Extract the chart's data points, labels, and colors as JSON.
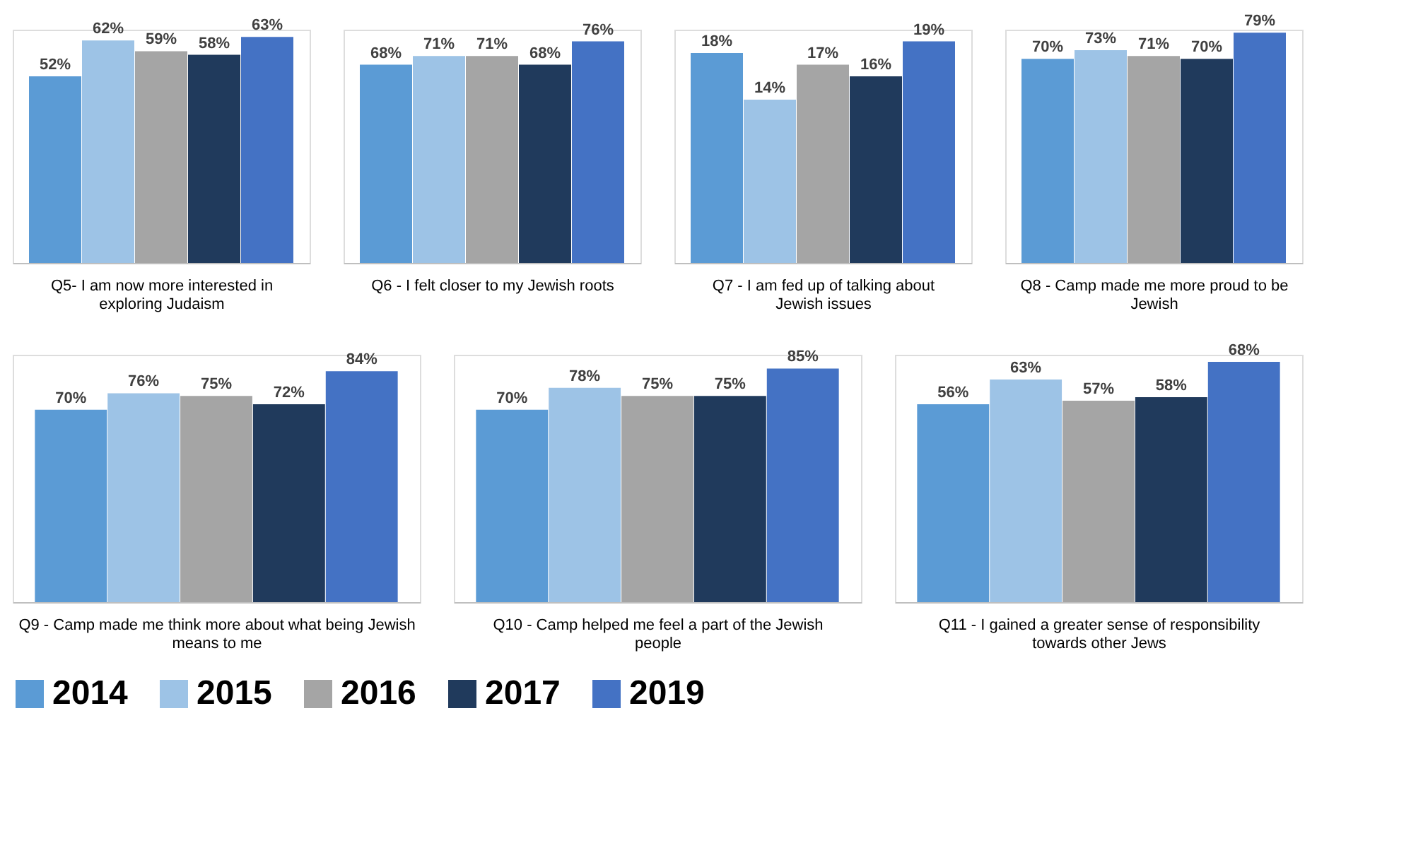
{
  "chart_data": [
    {
      "type": "bar",
      "xlabel": "Q5- I am now more interested in exploring Judaism",
      "categories": [
        null
      ],
      "tick_labels": false,
      "legend": "bottom",
      "grid": false,
      "series": [
        {
          "name": "2014",
          "color": "#5b9bd5",
          "values": [
            52
          ],
          "value_labels": [
            "52%"
          ]
        },
        {
          "name": "2015",
          "color": "#9dc3e6",
          "values": [
            62
          ],
          "value_labels": [
            "62%"
          ]
        },
        {
          "name": "2016",
          "color": "#a5a5a5",
          "values": [
            59
          ],
          "value_labels": [
            "59%"
          ]
        },
        {
          "name": "2017",
          "color": "#203a5c",
          "values": [
            58
          ],
          "value_labels": [
            "58%"
          ]
        },
        {
          "name": "2019",
          "color": "#4472c4",
          "values": [
            63
          ],
          "value_labels": [
            "63%"
          ]
        }
      ]
    },
    {
      "type": "bar",
      "xlabel": "Q6 - I felt closer to my Jewish roots",
      "categories": [
        null
      ],
      "tick_labels": false,
      "legend": "bottom",
      "grid": false,
      "series": [
        {
          "name": "2014",
          "color": "#5b9bd5",
          "values": [
            68
          ],
          "value_labels": [
            "68%"
          ]
        },
        {
          "name": "2015",
          "color": "#9dc3e6",
          "values": [
            71
          ],
          "value_labels": [
            "71%"
          ]
        },
        {
          "name": "2016",
          "color": "#a5a5a5",
          "values": [
            71
          ],
          "value_labels": [
            "71%"
          ]
        },
        {
          "name": "2017",
          "color": "#203a5c",
          "values": [
            68
          ],
          "value_labels": [
            "68%"
          ]
        },
        {
          "name": "2019",
          "color": "#4472c4",
          "values": [
            76
          ],
          "value_labels": [
            "76%"
          ]
        }
      ]
    },
    {
      "type": "bar",
      "xlabel": "Q7 - I am fed up of talking about Jewish issues",
      "categories": [
        null
      ],
      "tick_labels": false,
      "legend": "bottom",
      "grid": false,
      "series": [
        {
          "name": "2014",
          "color": "#5b9bd5",
          "values": [
            18
          ],
          "value_labels": [
            "18%"
          ]
        },
        {
          "name": "2015",
          "color": "#9dc3e6",
          "values": [
            14
          ],
          "value_labels": [
            "14%"
          ]
        },
        {
          "name": "2016",
          "color": "#a5a5a5",
          "values": [
            17
          ],
          "value_labels": [
            "17%"
          ]
        },
        {
          "name": "2017",
          "color": "#203a5c",
          "values": [
            16
          ],
          "value_labels": [
            "16%"
          ]
        },
        {
          "name": "2019",
          "color": "#4472c4",
          "values": [
            19
          ],
          "value_labels": [
            "19%"
          ]
        }
      ]
    },
    {
      "type": "bar",
      "xlabel": "Q8 - Camp made me more proud to be Jewish",
      "categories": [
        null
      ],
      "tick_labels": false,
      "legend": "bottom",
      "grid": false,
      "series": [
        {
          "name": "2014",
          "color": "#5b9bd5",
          "values": [
            70
          ],
          "value_labels": [
            "70%"
          ]
        },
        {
          "name": "2015",
          "color": "#9dc3e6",
          "values": [
            73
          ],
          "value_labels": [
            "73%"
          ]
        },
        {
          "name": "2016",
          "color": "#a5a5a5",
          "values": [
            71
          ],
          "value_labels": [
            "71%"
          ]
        },
        {
          "name": "2017",
          "color": "#203a5c",
          "values": [
            70
          ],
          "value_labels": [
            "70%"
          ]
        },
        {
          "name": "2019",
          "color": "#4472c4",
          "values": [
            79
          ],
          "value_labels": [
            "79%"
          ]
        }
      ]
    },
    {
      "type": "bar",
      "xlabel": "Q9 - Camp made me think more about what being Jewish means to me",
      "categories": [
        null
      ],
      "tick_labels": false,
      "legend": "bottom",
      "grid": false,
      "series": [
        {
          "name": "2014",
          "color": "#5b9bd5",
          "values": [
            70
          ],
          "value_labels": [
            "70%"
          ]
        },
        {
          "name": "2015",
          "color": "#9dc3e6",
          "values": [
            76
          ],
          "value_labels": [
            "76%"
          ]
        },
        {
          "name": "2016",
          "color": "#a5a5a5",
          "values": [
            75
          ],
          "value_labels": [
            "75%"
          ]
        },
        {
          "name": "2017",
          "color": "#203a5c",
          "values": [
            72
          ],
          "value_labels": [
            "72%"
          ]
        },
        {
          "name": "2019",
          "color": "#4472c4",
          "values": [
            84
          ],
          "value_labels": [
            "84%"
          ]
        }
      ]
    },
    {
      "type": "bar",
      "xlabel": "Q10 - Camp helped me feel a part of the Jewish people",
      "categories": [
        null
      ],
      "tick_labels": false,
      "legend": "bottom",
      "grid": false,
      "series": [
        {
          "name": "2014",
          "color": "#5b9bd5",
          "values": [
            70
          ],
          "value_labels": [
            "70%"
          ]
        },
        {
          "name": "2015",
          "color": "#9dc3e6",
          "values": [
            78
          ],
          "value_labels": [
            "78%"
          ]
        },
        {
          "name": "2016",
          "color": "#a5a5a5",
          "values": [
            75
          ],
          "value_labels": [
            "75%"
          ]
        },
        {
          "name": "2017",
          "color": "#203a5c",
          "values": [
            75
          ],
          "value_labels": [
            "75%"
          ]
        },
        {
          "name": "2019",
          "color": "#4472c4",
          "values": [
            85
          ],
          "value_labels": [
            "85%"
          ]
        }
      ]
    },
    {
      "type": "bar",
      "xlabel": "Q11 - I gained a greater sense of responsibility towards other Jews",
      "categories": [
        null
      ],
      "tick_labels": false,
      "legend": "bottom",
      "grid": false,
      "series": [
        {
          "name": "2014",
          "color": "#5b9bd5",
          "values": [
            56
          ],
          "value_labels": [
            "56%"
          ]
        },
        {
          "name": "2015",
          "color": "#9dc3e6",
          "values": [
            63
          ],
          "value_labels": [
            "63%"
          ]
        },
        {
          "name": "2016",
          "color": "#a5a5a5",
          "values": [
            57
          ],
          "value_labels": [
            "57%"
          ]
        },
        {
          "name": "2017",
          "color": "#203a5c",
          "values": [
            58
          ],
          "value_labels": [
            "58%"
          ]
        },
        {
          "name": "2019",
          "color": "#4472c4",
          "values": [
            68
          ],
          "value_labels": [
            "68%"
          ]
        }
      ]
    }
  ]
}
